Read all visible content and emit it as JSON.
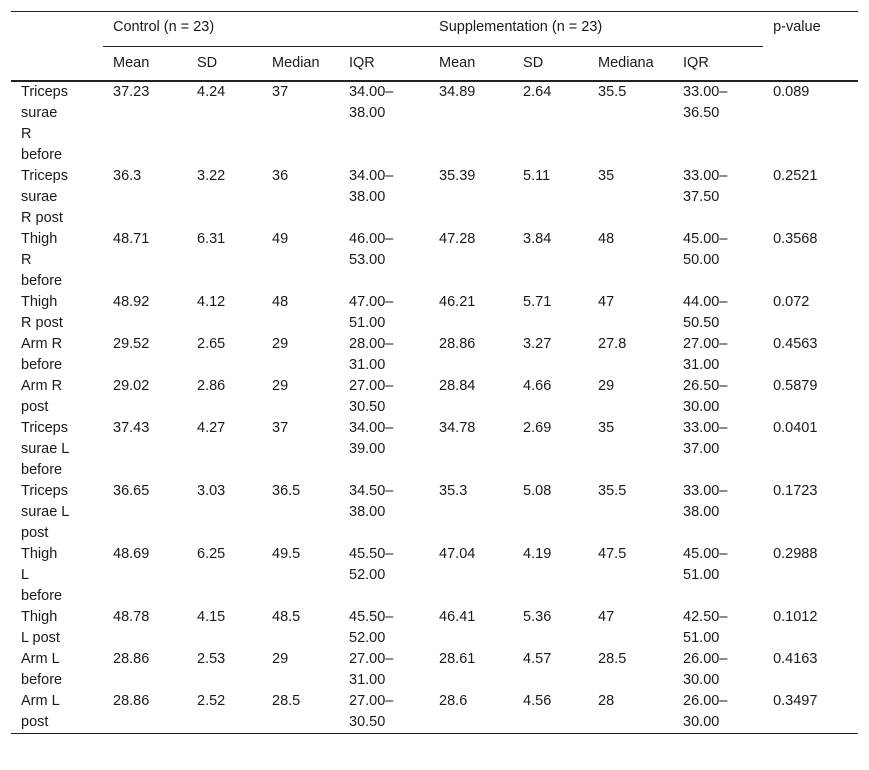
{
  "header": {
    "control_group": "Control (n = 23)",
    "supplementation_group": "Supplementation (n = 23)",
    "pvalue": "p-value",
    "control_cols": [
      "Mean",
      "SD",
      "Median",
      "IQR"
    ],
    "supplementation_cols": [
      "Mean",
      "SD",
      "Mediana",
      "IQR"
    ]
  },
  "rows": [
    {
      "label": [
        "Triceps",
        "surae",
        "R",
        "before"
      ],
      "c_mean": "37.23",
      "c_sd": "4.24",
      "c_median": "37",
      "c_iqr": [
        "34.00–",
        "38.00"
      ],
      "s_mean": "34.89",
      "s_sd": "2.64",
      "s_median": "35.5",
      "s_iqr": [
        "33.00–",
        "36.50"
      ],
      "p": "0.089",
      "p_bold": false
    },
    {
      "label": [
        "Triceps",
        "surae",
        "R post"
      ],
      "c_mean": "36.3",
      "c_sd": "3.22",
      "c_median": "36",
      "c_iqr": [
        "34.00–",
        "38.00"
      ],
      "s_mean": "35.39",
      "s_sd": "5.11",
      "s_median": "35",
      "s_iqr": [
        "33.00–",
        "37.50"
      ],
      "p": "0.2521",
      "p_bold": false
    },
    {
      "label": [
        "Thigh",
        "R",
        "before"
      ],
      "c_mean": "48.71",
      "c_sd": "6.31",
      "c_median": "49",
      "c_iqr": [
        "46.00–",
        "53.00"
      ],
      "s_mean": "47.28",
      "s_sd": "3.84",
      "s_median": "48",
      "s_iqr": [
        "45.00–",
        "50.00"
      ],
      "p": "0.3568",
      "p_bold": false
    },
    {
      "label": [
        "Thigh",
        "R post"
      ],
      "c_mean": "48.92",
      "c_sd": "4.12",
      "c_median": "48",
      "c_iqr": [
        "47.00–",
        "51.00"
      ],
      "s_mean": "46.21",
      "s_sd": "5.71",
      "s_median": "47",
      "s_iqr": [
        "44.00–",
        "50.50"
      ],
      "p": "0.072",
      "p_bold": false
    },
    {
      "label": [
        "Arm R",
        "before"
      ],
      "c_mean": "29.52",
      "c_sd": "2.65",
      "c_median": "29",
      "c_iqr": [
        "28.00–",
        "31.00"
      ],
      "s_mean": "28.86",
      "s_sd": "3.27",
      "s_median": "27.8",
      "s_iqr": [
        "27.00–",
        "31.00"
      ],
      "p": "0.4563",
      "p_bold": false
    },
    {
      "label": [
        "Arm R",
        "post"
      ],
      "c_mean": "29.02",
      "c_sd": "2.86",
      "c_median": "29",
      "c_iqr": [
        "27.00–",
        "30.50"
      ],
      "s_mean": "28.84",
      "s_sd": "4.66",
      "s_median": "29",
      "s_iqr": [
        "26.50–",
        "30.00"
      ],
      "p": "0.5879",
      "p_bold": false
    },
    {
      "label": [
        "Triceps",
        "surae L",
        "before"
      ],
      "c_mean": "37.43",
      "c_sd": "4.27",
      "c_median": "37",
      "c_iqr": [
        "34.00–",
        "39.00"
      ],
      "s_mean": "34.78",
      "s_sd": "2.69",
      "s_median": "35",
      "s_iqr": [
        "33.00–",
        "37.00"
      ],
      "p": "0.0401",
      "p_bold": true
    },
    {
      "label": [
        "Triceps",
        "surae L",
        "post"
      ],
      "c_mean": "36.65",
      "c_sd": "3.03",
      "c_median": "36.5",
      "c_iqr": [
        "34.50–",
        "38.00"
      ],
      "s_mean": "35.3",
      "s_sd": "5.08",
      "s_median": "35.5",
      "s_iqr": [
        "33.00–",
        "38.00"
      ],
      "p": "0.1723",
      "p_bold": false
    },
    {
      "label": [
        "Thigh",
        "L",
        "before"
      ],
      "c_mean": "48.69",
      "c_sd": "6.25",
      "c_median": "49.5",
      "c_iqr": [
        "45.50–",
        "52.00"
      ],
      "s_mean": "47.04",
      "s_sd": "4.19",
      "s_median": "47.5",
      "s_iqr": [
        "45.00–",
        "51.00"
      ],
      "p": "0.2988",
      "p_bold": false
    },
    {
      "label": [
        "Thigh",
        "L post"
      ],
      "c_mean": "48.78",
      "c_sd": "4.15",
      "c_median": "48.5",
      "c_iqr": [
        "45.50–",
        "52.00"
      ],
      "s_mean": "46.41",
      "s_sd": "5.36",
      "s_median": "47",
      "s_iqr": [
        "42.50–",
        "51.00"
      ],
      "p": "0.1012",
      "p_bold": false
    },
    {
      "label": [
        "Arm L",
        "before"
      ],
      "c_mean": "28.86",
      "c_sd": "2.53",
      "c_median": "29",
      "c_iqr": [
        "27.00–",
        "31.00"
      ],
      "s_mean": "28.61",
      "s_sd": "4.57",
      "s_median": "28.5",
      "s_iqr": [
        "26.00–",
        "30.00"
      ],
      "p": "0.4163",
      "p_bold": false
    },
    {
      "label": [
        "Arm L",
        "post"
      ],
      "c_mean": "28.86",
      "c_sd": "2.52",
      "c_median": "28.5",
      "c_iqr": [
        "27.00–",
        "30.50"
      ],
      "s_mean": "28.6",
      "s_sd": "4.56",
      "s_median": "28",
      "s_iqr": [
        "26.00–",
        "30.00"
      ],
      "p": "0.3497",
      "p_bold": false
    }
  ]
}
